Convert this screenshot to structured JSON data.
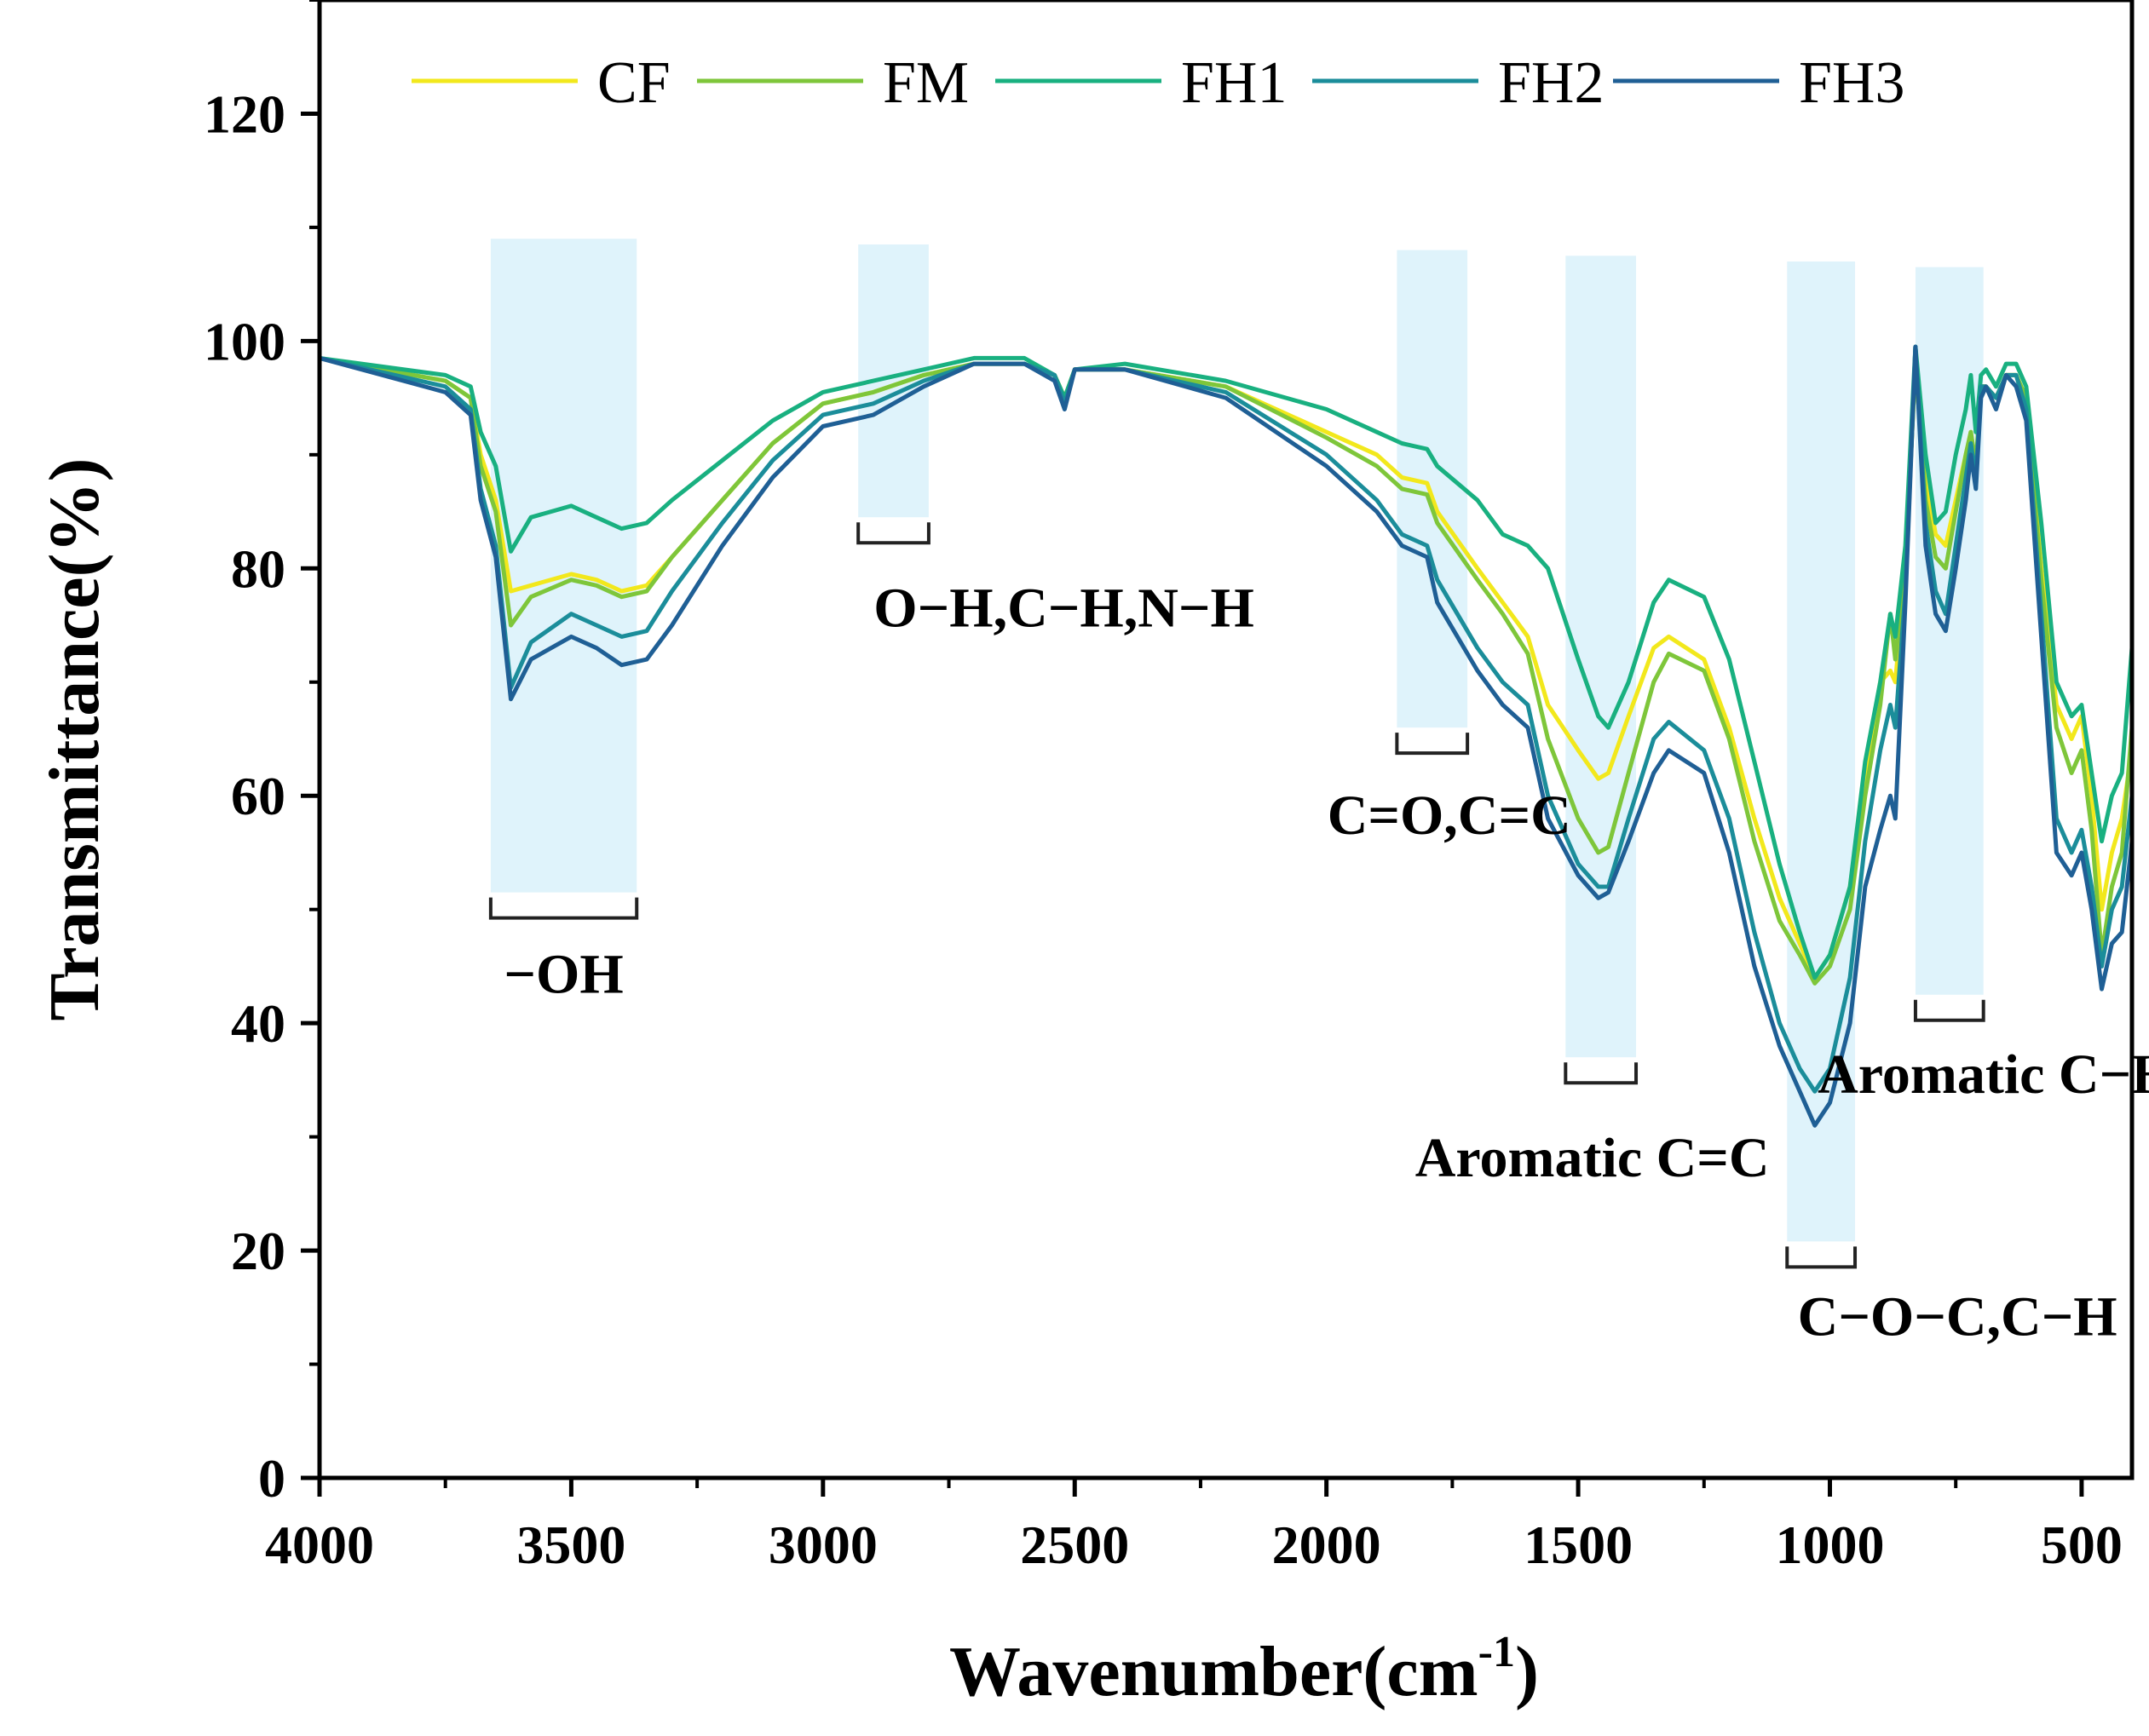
{
  "chart_data": {
    "type": "line",
    "title": "",
    "xlabel": "Wavenumber(cm",
    "xlabel_sup": "-1",
    "xlabel_close": ")",
    "ylabel": "Transmittance(%)",
    "xlim": [
      4000,
      400
    ],
    "ylim": [
      0,
      130
    ],
    "xticks": [
      4000,
      3500,
      3000,
      2500,
      2000,
      1500,
      1000,
      500
    ],
    "yticks": [
      0,
      20,
      40,
      60,
      80,
      100,
      120
    ],
    "legend_position": "top",
    "series": [
      {
        "name": "CF",
        "color": "#f2e81c",
        "x": [
          4000,
          3750,
          3700,
          3680,
          3650,
          3620,
          3580,
          3500,
          3450,
          3400,
          3350,
          3300,
          3200,
          3100,
          3000,
          2900,
          2800,
          2700,
          2600,
          2540,
          2520,
          2500,
          2400,
          2200,
          2000,
          1900,
          1850,
          1800,
          1780,
          1700,
          1650,
          1600,
          1560,
          1500,
          1460,
          1440,
          1400,
          1350,
          1320,
          1250,
          1200,
          1150,
          1100,
          1060,
          1030,
          1000,
          960,
          930,
          900,
          880,
          870,
          850,
          830,
          810,
          790,
          770,
          750,
          730,
          720,
          710,
          700,
          690,
          670,
          650,
          630,
          610,
          580,
          550,
          520,
          500,
          480,
          460,
          440,
          420,
          400
        ],
        "y": [
          98.5,
          96.5,
          95,
          90,
          86,
          78,
          78.5,
          79.5,
          79,
          78,
          78.5,
          81,
          86,
          91,
          94.5,
          95.5,
          97,
          98,
          98,
          97,
          95,
          97.5,
          97.5,
          96,
          92,
          90,
          88,
          87.5,
          85,
          80,
          77,
          74,
          68,
          64,
          61.5,
          62,
          67,
          73,
          74,
          72,
          66,
          58,
          51,
          47,
          44,
          46,
          52,
          62,
          70,
          71,
          70,
          80,
          98,
          88,
          83,
          82,
          86,
          90,
          92,
          89,
          96,
          96,
          95,
          97,
          97,
          95,
          80,
          68,
          65,
          67,
          60,
          50,
          55,
          58,
          64
        ]
      },
      {
        "name": "FM",
        "color": "#7ec63a",
        "x": [
          4000,
          3750,
          3700,
          3680,
          3650,
          3620,
          3580,
          3500,
          3450,
          3400,
          3350,
          3300,
          3200,
          3100,
          3000,
          2900,
          2800,
          2700,
          2600,
          2540,
          2520,
          2500,
          2400,
          2200,
          2000,
          1900,
          1850,
          1800,
          1780,
          1700,
          1650,
          1600,
          1560,
          1500,
          1460,
          1440,
          1400,
          1350,
          1320,
          1250,
          1200,
          1150,
          1100,
          1060,
          1030,
          1000,
          960,
          930,
          900,
          880,
          870,
          850,
          830,
          810,
          790,
          770,
          750,
          730,
          720,
          710,
          700,
          690,
          670,
          650,
          630,
          610,
          580,
          550,
          520,
          500,
          480,
          460,
          440,
          420,
          400
        ],
        "y": [
          98.5,
          96.5,
          95,
          89,
          85,
          75,
          77.5,
          79,
          78.5,
          77.5,
          78,
          81,
          86,
          91,
          94.5,
          95.5,
          97,
          98,
          98,
          97,
          95,
          97.5,
          97.5,
          96,
          91.5,
          89,
          87,
          86.5,
          84,
          79,
          76,
          72.5,
          65,
          58,
          55,
          55.5,
          62,
          70,
          72.5,
          71,
          65,
          56,
          49,
          46,
          43.5,
          45,
          50,
          60,
          68,
          76,
          72,
          80,
          98,
          86,
          81,
          80,
          85,
          90,
          92,
          89,
          96,
          96,
          95,
          97,
          97,
          95,
          79,
          66,
          62,
          64,
          57,
          46,
          52,
          55,
          66
        ]
      },
      {
        "name": "FH1",
        "color": "#19b080",
        "x": [
          4000,
          3750,
          3700,
          3680,
          3650,
          3620,
          3580,
          3500,
          3450,
          3400,
          3350,
          3300,
          3200,
          3100,
          3000,
          2900,
          2800,
          2700,
          2600,
          2540,
          2520,
          2500,
          2400,
          2200,
          2000,
          1900,
          1850,
          1800,
          1780,
          1700,
          1650,
          1600,
          1560,
          1500,
          1460,
          1440,
          1400,
          1350,
          1320,
          1250,
          1200,
          1150,
          1100,
          1060,
          1030,
          1000,
          960,
          930,
          900,
          880,
          870,
          850,
          830,
          810,
          790,
          770,
          750,
          730,
          720,
          710,
          700,
          690,
          670,
          650,
          630,
          610,
          580,
          550,
          520,
          500,
          480,
          460,
          440,
          420,
          400
        ],
        "y": [
          98.5,
          97,
          96,
          92,
          89,
          81.5,
          84.5,
          85.5,
          84.5,
          83.5,
          84,
          86,
          89.5,
          93,
          95.5,
          96.5,
          97.5,
          98.5,
          98.5,
          97,
          95,
          97.5,
          98,
          96.5,
          94,
          92,
          91,
          90.5,
          89,
          86,
          83,
          82,
          80,
          72,
          67,
          66,
          70,
          77,
          79,
          77.5,
          72,
          63,
          54,
          48,
          44,
          46,
          52,
          63,
          70,
          76,
          74,
          82,
          99.5,
          90,
          84,
          85,
          90,
          94,
          97,
          92,
          97,
          97.5,
          96,
          98,
          98,
          96,
          84,
          70,
          67,
          68,
          62,
          56,
          60,
          62,
          73
        ]
      },
      {
        "name": "FH2",
        "color": "#1b8d9a",
        "x": [
          4000,
          3750,
          3700,
          3680,
          3650,
          3620,
          3580,
          3500,
          3450,
          3400,
          3350,
          3300,
          3200,
          3100,
          3000,
          2900,
          2800,
          2700,
          2600,
          2540,
          2520,
          2500,
          2400,
          2200,
          2000,
          1900,
          1850,
          1800,
          1780,
          1700,
          1650,
          1600,
          1560,
          1500,
          1460,
          1440,
          1400,
          1350,
          1320,
          1250,
          1200,
          1150,
          1100,
          1060,
          1030,
          1000,
          960,
          930,
          900,
          880,
          870,
          850,
          830,
          810,
          790,
          770,
          750,
          730,
          720,
          710,
          700,
          690,
          670,
          650,
          630,
          610,
          580,
          550,
          520,
          500,
          480,
          460,
          440,
          420,
          400
        ],
        "y": [
          98.5,
          96,
          94,
          87,
          82,
          69.5,
          73.5,
          76,
          75,
          74,
          74.5,
          78,
          84,
          89.5,
          93.5,
          94.5,
          96.5,
          98,
          98,
          97,
          94.5,
          97.5,
          97.5,
          95.5,
          90,
          86,
          83,
          82,
          79,
          73,
          70,
          68,
          60,
          54,
          52,
          52,
          58,
          65,
          66.5,
          64,
          58,
          48,
          40,
          36,
          34,
          36,
          44,
          56,
          64,
          68,
          66,
          78,
          99.5,
          84,
          78,
          76,
          82,
          88,
          91,
          88,
          96,
          96,
          95,
          97,
          97,
          94,
          76,
          58,
          55,
          57,
          52,
          45,
          50,
          52,
          60
        ]
      },
      {
        "name": "FH3",
        "color": "#1f5f95",
        "x": [
          4000,
          3750,
          3700,
          3680,
          3650,
          3620,
          3580,
          3500,
          3450,
          3400,
          3350,
          3300,
          3200,
          3100,
          3000,
          2900,
          2800,
          2700,
          2600,
          2540,
          2520,
          2500,
          2400,
          2200,
          2000,
          1900,
          1850,
          1800,
          1780,
          1700,
          1650,
          1600,
          1560,
          1500,
          1460,
          1440,
          1400,
          1350,
          1320,
          1250,
          1200,
          1150,
          1100,
          1060,
          1030,
          1000,
          960,
          930,
          900,
          880,
          870,
          850,
          830,
          810,
          790,
          770,
          750,
          730,
          720,
          710,
          700,
          690,
          670,
          650,
          630,
          610,
          580,
          550,
          520,
          500,
          480,
          460,
          440,
          420,
          400
        ],
        "y": [
          98.5,
          95.5,
          93.5,
          86,
          81,
          68.5,
          72,
          74,
          73,
          71.5,
          72,
          75,
          82,
          88,
          92.5,
          93.5,
          96,
          98,
          98,
          96.5,
          94,
          97.5,
          97.5,
          95,
          89,
          85,
          82,
          81,
          77,
          71,
          68,
          66,
          58,
          53,
          51,
          51.5,
          56,
          62,
          64,
          62,
          55,
          45,
          38,
          34,
          31,
          33,
          40,
          52,
          57,
          60,
          58,
          77,
          99.5,
          82,
          76,
          74.5,
          80,
          86,
          90,
          87,
          95,
          96,
          94,
          97,
          96,
          93,
          74,
          55,
          53,
          55,
          50,
          43,
          47,
          48,
          56
        ]
      }
    ],
    "annotations": [
      {
        "label": "−OH",
        "x_range": [
          3660,
          3370
        ],
        "y_range": [
          51.5,
          109
        ]
      },
      {
        "label": "O−H,C−H,N−H",
        "x_range": [
          2930,
          2790
        ],
        "y_range": [
          84.5,
          108.5
        ]
      },
      {
        "label": "C=O,C=C",
        "x_range": [
          1860,
          1720
        ],
        "y_range": [
          66,
          108
        ]
      },
      {
        "label": "Aromatic C=C",
        "x_range": [
          1525,
          1385
        ],
        "y_range": [
          37,
          107.5
        ]
      },
      {
        "label": "C−O−C,C−H",
        "x_range": [
          1085,
          950
        ],
        "y_range": [
          20.8,
          107
        ]
      },
      {
        "label": "Aromatic C−H",
        "x_range": [
          830,
          695
        ],
        "y_range": [
          42.5,
          106.5
        ]
      }
    ]
  }
}
